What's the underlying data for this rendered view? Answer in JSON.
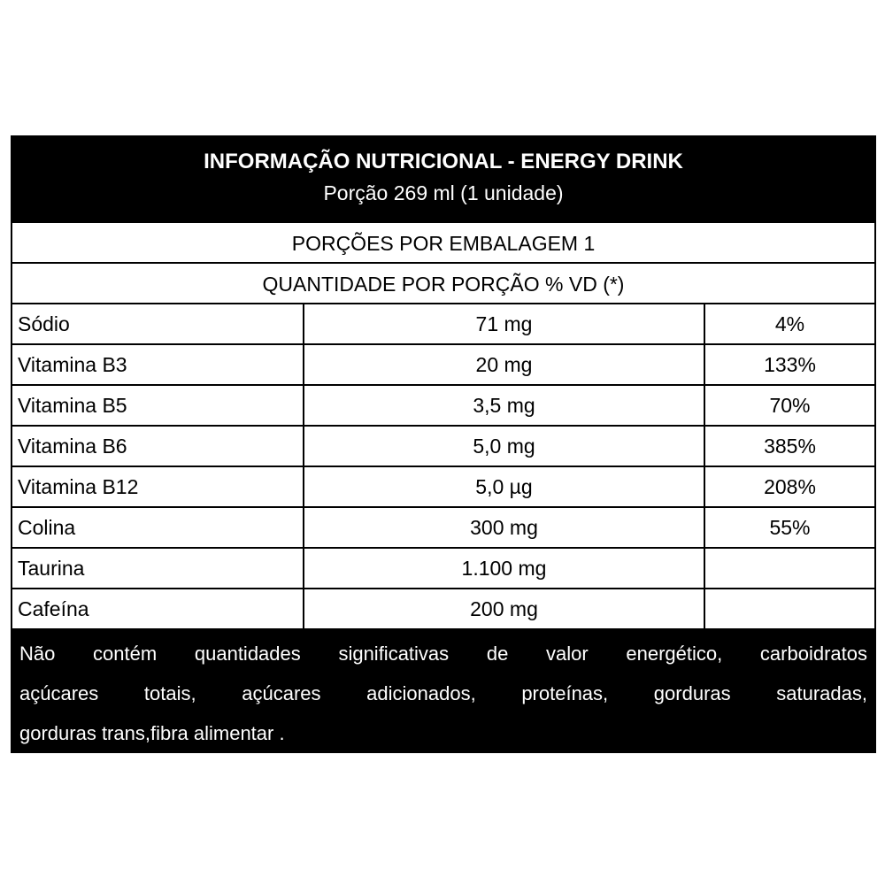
{
  "header": {
    "title": "INFORMAÇÃO NUTRICIONAL - ENERGY DRINK",
    "subtitle": "Porção 269 ml (1 unidade)"
  },
  "servings": "PORÇÕES POR EMBALAGEM 1",
  "columns_header": "QUANTIDADE POR PORÇÃO % VD (*)",
  "table": {
    "rows": [
      [
        "Sódio",
        "71 mg",
        "4%"
      ],
      [
        "Vitamina B3",
        "20 mg",
        "133%"
      ],
      [
        "Vitamina B5",
        "3,5 mg",
        "70%"
      ],
      [
        "Vitamina B6",
        "5,0 mg",
        "385%"
      ],
      [
        "Vitamina B12",
        "5,0 µg",
        "208%"
      ],
      [
        "Colina",
        "300 mg",
        "55%"
      ],
      [
        "Taurina",
        "1.100 mg"
      ],
      [
        "Cafeína",
        "200 mg"
      ]
    ]
  },
  "footer": {
    "lines": [
      "Não contém quantidades significativas de valor energético, carboidratos",
      "açúcares totais, açúcares adicionados, proteínas, gorduras saturadas,",
      "gorduras trans,fibra alimentar ."
    ]
  }
}
